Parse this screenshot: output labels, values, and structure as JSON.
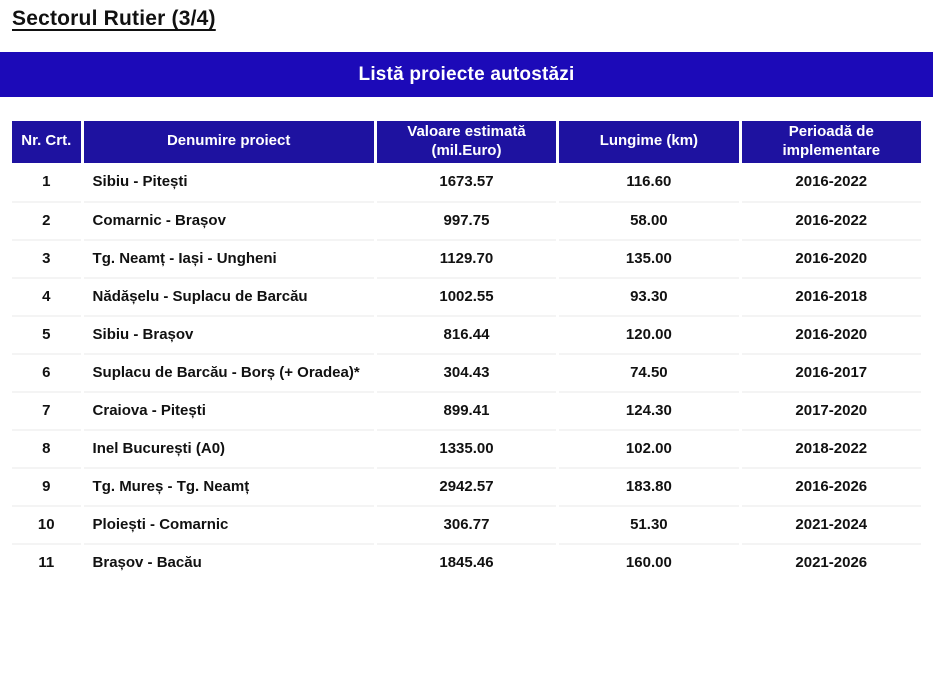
{
  "page_title": "Sectorul Rutier (3/4)",
  "banner": {
    "title": "Listă proiecte autostăzi"
  },
  "colors": {
    "banner_bg": "#1C0AB8",
    "header_bg": "#1E12A0",
    "header_text": "#ffffff",
    "body_text": "#111111"
  },
  "table": {
    "columns": [
      {
        "label": "Nr. Crt."
      },
      {
        "label": "Denumire proiect"
      },
      {
        "label": "Valoare estimată\n(mil.Euro)"
      },
      {
        "label": "Lungime (km)"
      },
      {
        "label": "Perioadă de\nimplementare"
      }
    ],
    "rows": [
      {
        "cells": [
          "1",
          "Sibiu - Pitești",
          "1673.57",
          "116.60",
          "2016-2022"
        ]
      },
      {
        "cells": [
          "2",
          "Comarnic - Brașov",
          "997.75",
          "58.00",
          "2016-2022"
        ]
      },
      {
        "cells": [
          "3",
          "Tg. Neamț - Iași - Ungheni",
          "1129.70",
          "135.00",
          "2016-2020"
        ]
      },
      {
        "cells": [
          "4",
          "Nădășelu - Suplacu de Barcău",
          "1002.55",
          "93.30",
          "2016-2018"
        ]
      },
      {
        "cells": [
          "5",
          "Sibiu - Brașov",
          "816.44",
          "120.00",
          "2016-2020"
        ]
      },
      {
        "cells": [
          "6",
          "Suplacu de Barcău - Borș (+ Oradea)*",
          "304.43",
          "74.50",
          "2016-2017"
        ]
      },
      {
        "cells": [
          "7",
          "Craiova - Pitești",
          "899.41",
          "124.30",
          "2017-2020"
        ]
      },
      {
        "cells": [
          "8",
          "Inel București (A0)",
          "1335.00",
          "102.00",
          "2018-2022"
        ]
      },
      {
        "cells": [
          "9",
          "Tg. Mureș - Tg. Neamț",
          "2942.57",
          "183.80",
          "2016-2026"
        ]
      },
      {
        "cells": [
          "10",
          "Ploiești - Comarnic",
          "306.77",
          "51.30",
          "2021-2024"
        ]
      },
      {
        "cells": [
          "11",
          "Brașov - Bacău",
          "1845.46",
          "160.00",
          "2021-2026"
        ]
      }
    ]
  }
}
